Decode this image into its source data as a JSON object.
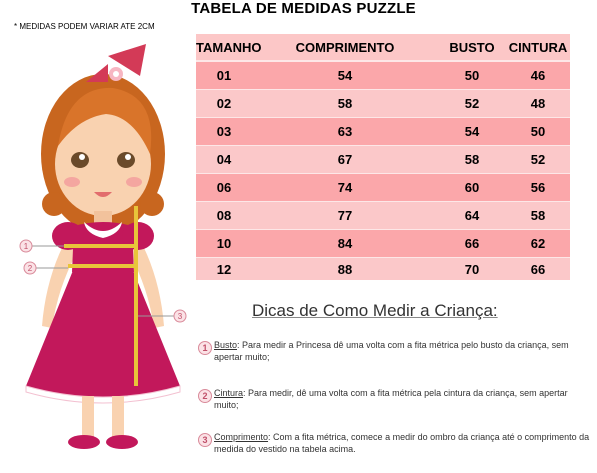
{
  "title": "TABELA DE MEDIDAS PUZZLE",
  "note": "* MEDIDAS PODEM VARIAR ATE 2CM",
  "table": {
    "headers": [
      "TAMANHO",
      "COMPRIMENTO",
      "BUSTO",
      "CINTURA"
    ],
    "rows": [
      [
        "01",
        "54",
        "50",
        "46"
      ],
      [
        "02",
        "58",
        "52",
        "48"
      ],
      [
        "03",
        "63",
        "54",
        "50"
      ],
      [
        "04",
        "67",
        "58",
        "52"
      ],
      [
        "06",
        "74",
        "60",
        "56"
      ],
      [
        "08",
        "77",
        "64",
        "58"
      ],
      [
        "10",
        "84",
        "66",
        "62"
      ],
      [
        "12",
        "88",
        "70",
        "66"
      ]
    ]
  },
  "illustration": {
    "markers": [
      "1",
      "2",
      "3"
    ]
  },
  "tips": {
    "title": "Dicas de Como Medir a Criança:",
    "items": [
      {
        "num": "1",
        "keyword": "Busto",
        "text": ": Para medir a Princesa dê uma volta com a fita métrica pelo busto da criança, sem apertar muito;"
      },
      {
        "num": "2",
        "keyword": "Cintura",
        "text": ": Para medir, dê uma volta com a fita métrica pela cintura da criança, sem apertar muito;"
      },
      {
        "num": "3",
        "keyword": "Comprimento",
        "text": ": Com a fita métrica, comece a medir do ombro da criança até o comprimento da medida do vestido na tabela acima."
      }
    ]
  },
  "colors": {
    "header_row": "#fcc7c7",
    "row_dark": "#fba7aa",
    "row_light": "#fbc8c9",
    "dress": "#c2185b"
  }
}
